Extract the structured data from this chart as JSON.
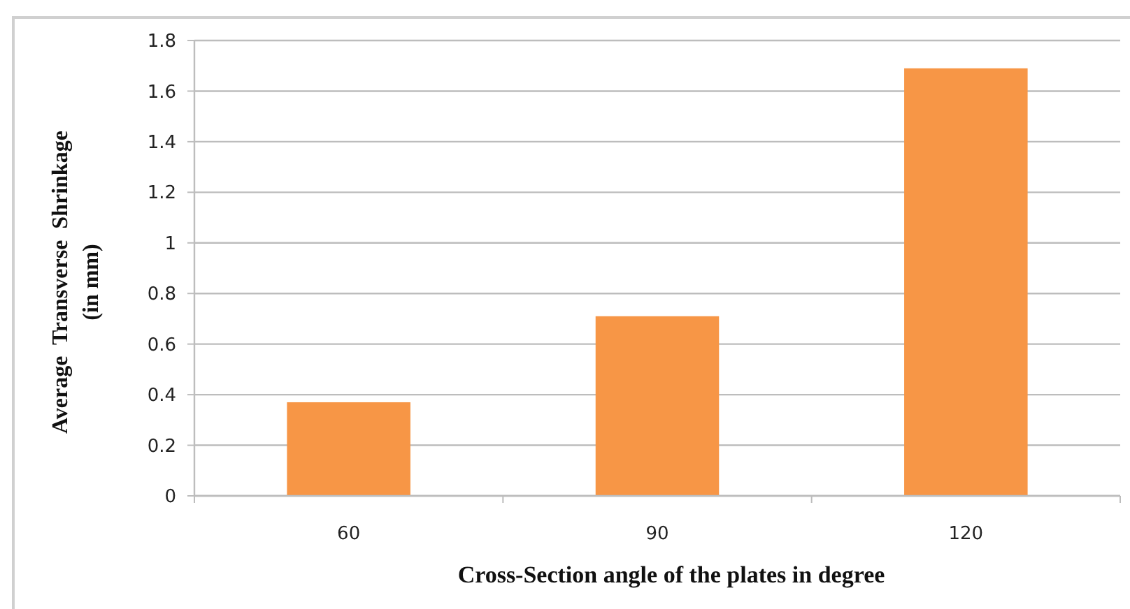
{
  "chart_data": {
    "type": "bar",
    "xlabel": "Cross-Section angle of the plates in degree",
    "ylabel": "Average  Transverse  Shrinkage\n(in mm)",
    "categories": [
      "60",
      "90",
      "120"
    ],
    "values": [
      0.37,
      0.71,
      1.69
    ],
    "color": "#f79646",
    "ylim": [
      0,
      1.8
    ],
    "yticks": [
      0,
      {
        "value": 0.2,
        "label": "0.2"
      },
      {
        "value": 0.4,
        "label": "0.4"
      },
      {
        "value": 0.6,
        "label": "0.6"
      },
      {
        "value": 0.8,
        "label": "0.8"
      },
      1,
      {
        "value": 1.2,
        "label": "1.2"
      },
      {
        "value": 1.4,
        "label": "1.4"
      },
      {
        "value": 1.6,
        "label": "1.6"
      },
      {
        "value": 1.8,
        "label": "1.8"
      }
    ],
    "grid": "y"
  }
}
